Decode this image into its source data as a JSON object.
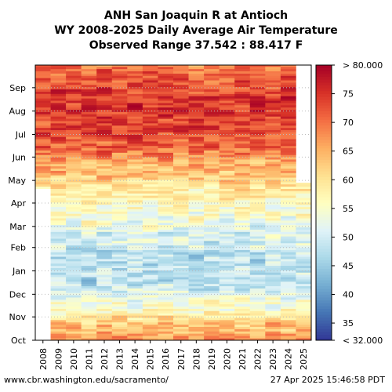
{
  "title": {
    "line1": "ANH San Joaquin R at Antioch",
    "line2": "WY 2008-2025 Daily Average Air Temperature",
    "line3": "Observed Range 37.542 : 88.417 F"
  },
  "footer": {
    "left": "www.cbr.washington.edu/sacramento/",
    "right": "27 Apr 2025 15:46:58 PDT"
  },
  "chart_data": {
    "type": "heatmap",
    "title": "ANH San Joaquin R at Antioch WY 2008-2025 Daily Average Air Temperature",
    "xlabel": "",
    "ylabel": "",
    "x": [
      "2008",
      "2009",
      "2010",
      "2011",
      "2012",
      "2013",
      "2014",
      "2015",
      "2016",
      "2017",
      "2018",
      "2019",
      "2020",
      "2021",
      "2022",
      "2023",
      "2024",
      "2025"
    ],
    "y_ticks": [
      "Oct",
      "Nov",
      "Dec",
      "Jan",
      "Feb",
      "Mar",
      "Apr",
      "May",
      "Jun",
      "Jul",
      "Aug",
      "Sep"
    ],
    "ylim": [
      "Oct 1",
      "Sep 30"
    ],
    "colorbar": {
      "ticks": [
        35,
        40,
        45,
        50,
        55,
        60,
        65,
        70,
        75
      ],
      "top_label": "> 80.000",
      "bottom_label": "< 32.000",
      "min": 32,
      "max": 80
    },
    "observed_range": [
      37.542,
      88.417
    ],
    "data_coverage": [
      {
        "water_year": "2008",
        "from": "Apr 20",
        "to": "Sep 30"
      },
      {
        "water_year": "2009-2024",
        "from": "Oct 1",
        "to": "Sep 30"
      },
      {
        "water_year": "2025",
        "from": "Oct 1",
        "to": "Apr 27"
      }
    ],
    "seasonal_mean_f": {
      "Oct": 64,
      "Nov": 55,
      "Dec": 48,
      "Jan": 48,
      "Feb": 51,
      "Mar": 55,
      "Apr": 59,
      "May": 65,
      "Jun": 71,
      "Jul": 74,
      "Aug": 74,
      "Sep": 72
    },
    "grid": true
  },
  "colors": {
    "scale": [
      "#313695",
      "#4575b4",
      "#74add1",
      "#abd9e9",
      "#e0f3f8",
      "#ffffbf",
      "#fee090",
      "#fdae61",
      "#f46d43",
      "#d73027",
      "#a50026"
    ],
    "grid": "#bbbbbb"
  }
}
